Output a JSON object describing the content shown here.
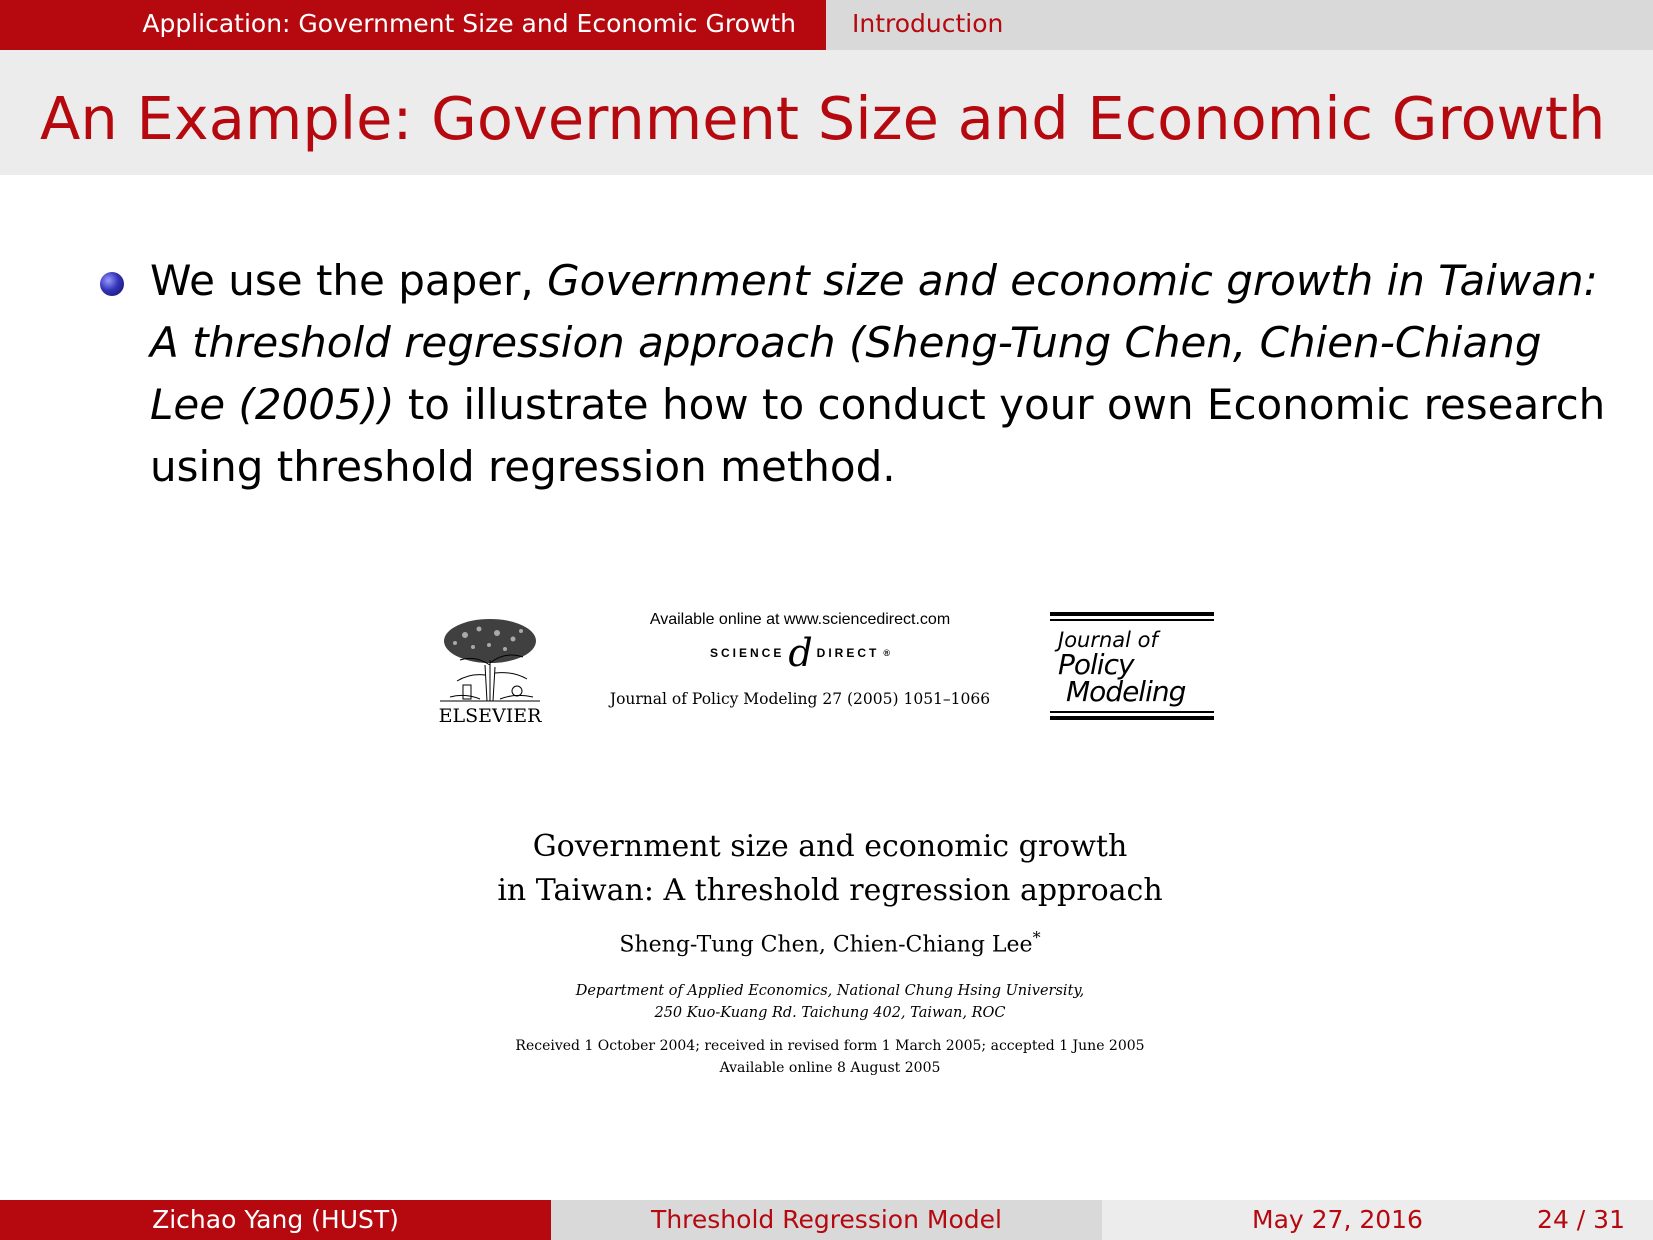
{
  "header": {
    "section": "Application: Government Size and Economic Growth",
    "subsection": "Introduction"
  },
  "frame": {
    "title": "An Example: Government Size and Economic Growth"
  },
  "bullet": {
    "part1": "We use the paper, ",
    "italic": "Government size and economic growth in Taiwan: A threshold regression approach (Sheng-Tung Chen, Chien-Chiang Lee (2005))",
    "part2": " to illustrate how to conduct your own Economic research using threshold regression method."
  },
  "paper": {
    "publisher": "ELSEVIER",
    "available_online": "Available online at www.sciencedirect.com",
    "sd_left": "SCIENCE",
    "sd_at": "d",
    "sd_right": "DIRECT",
    "sd_mark": "®",
    "journal_ref": "Journal of Policy Modeling 27 (2005) 1051–1066",
    "jpm_line1": "Journal of",
    "jpm_line2": "Policy",
    "jpm_line3": "Modeling",
    "title_line1": "Government size and economic growth",
    "title_line2": "in Taiwan: A threshold regression approach",
    "authors": "Sheng-Tung Chen, Chien-Chiang Lee",
    "author_mark": "*",
    "affiliation_line1": "Department of Applied Economics, National Chung Hsing University,",
    "affiliation_line2": "250 Kuo-Kuang Rd. Taichung 402, Taiwan, ROC",
    "dates_line1": "Received 1 October 2004; received in revised form 1 March 2005; accepted 1 June 2005",
    "dates_line2": "Available online 8 August 2005"
  },
  "footer": {
    "author": "Zichao Yang (HUST)",
    "title": "Threshold Regression Model",
    "date": "May 27, 2016",
    "page": "24 / 31"
  },
  "colors": {
    "accent_red": "#b5090f",
    "bar_gray": "#d9d9d9",
    "title_bg": "#ececec"
  }
}
